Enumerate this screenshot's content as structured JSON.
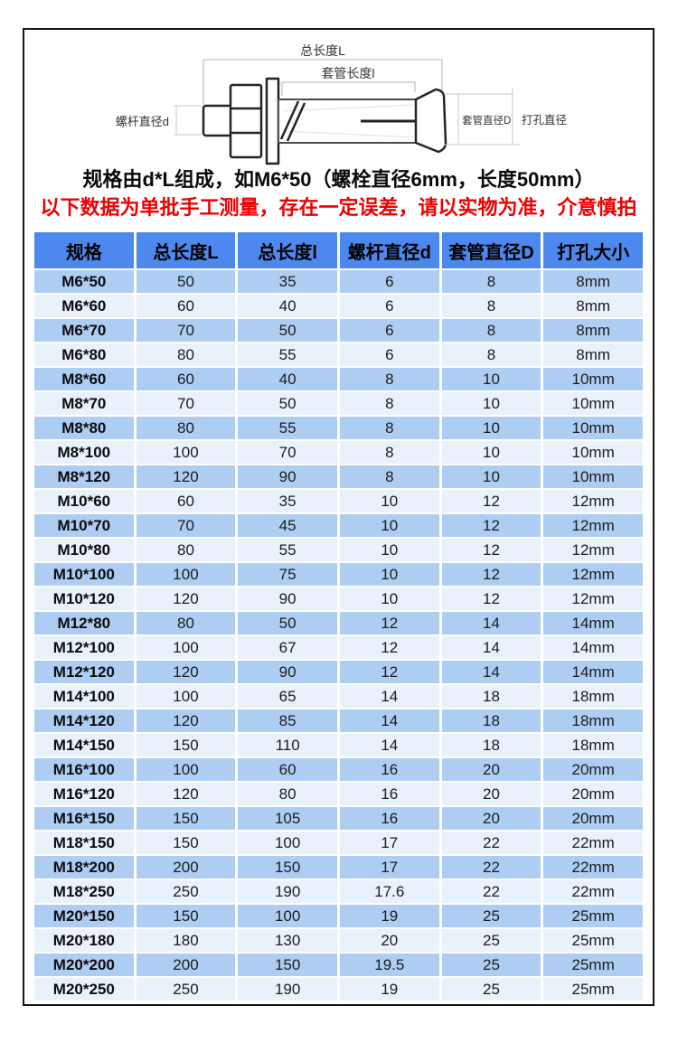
{
  "colors": {
    "header_bg": "#4d88ee",
    "row_odd_bg": "#aecdf3",
    "row_even_bg": "#e9f1fb",
    "warning_red": "#ee0000",
    "frame_border": "#161616"
  },
  "diagram": {
    "labels": {
      "total_length": "总长度L",
      "sleeve_length": "套管长度l",
      "screw_diameter": "螺杆直径d",
      "sleeve_diameter": "套管直径D",
      "drill_diameter": "打孔直径"
    }
  },
  "captions": {
    "spec_note": "规格由d*L组成，如M6*50（螺栓直径6mm，长度50mm）",
    "warning": "以下数据为单批手工测量，存在一定误差，请以实物为准，介意慎拍"
  },
  "table": {
    "headers": [
      "规格",
      "总长度L",
      "总长度l",
      "螺杆直径d",
      "套管直径D",
      "打孔大小"
    ],
    "rows": [
      [
        "M6*50",
        "50",
        "35",
        "6",
        "8",
        "8mm"
      ],
      [
        "M6*60",
        "60",
        "40",
        "6",
        "8",
        "8mm"
      ],
      [
        "M6*70",
        "70",
        "50",
        "6",
        "8",
        "8mm"
      ],
      [
        "M6*80",
        "80",
        "55",
        "6",
        "8",
        "8mm"
      ],
      [
        "M8*60",
        "60",
        "40",
        "8",
        "10",
        "10mm"
      ],
      [
        "M8*70",
        "70",
        "50",
        "8",
        "10",
        "10mm"
      ],
      [
        "M8*80",
        "80",
        "55",
        "8",
        "10",
        "10mm"
      ],
      [
        "M8*100",
        "100",
        "70",
        "8",
        "10",
        "10mm"
      ],
      [
        "M8*120",
        "120",
        "90",
        "8",
        "10",
        "10mm"
      ],
      [
        "M10*60",
        "60",
        "35",
        "10",
        "12",
        "12mm"
      ],
      [
        "M10*70",
        "70",
        "45",
        "10",
        "12",
        "12mm"
      ],
      [
        "M10*80",
        "80",
        "55",
        "10",
        "12",
        "12mm"
      ],
      [
        "M10*100",
        "100",
        "75",
        "10",
        "12",
        "12mm"
      ],
      [
        "M10*120",
        "120",
        "90",
        "10",
        "12",
        "12mm"
      ],
      [
        "M12*80",
        "80",
        "50",
        "12",
        "14",
        "14mm"
      ],
      [
        "M12*100",
        "100",
        "67",
        "12",
        "14",
        "14mm"
      ],
      [
        "M12*120",
        "120",
        "90",
        "12",
        "14",
        "14mm"
      ],
      [
        "M14*100",
        "100",
        "65",
        "14",
        "18",
        "18mm"
      ],
      [
        "M14*120",
        "120",
        "85",
        "14",
        "18",
        "18mm"
      ],
      [
        "M14*150",
        "150",
        "110",
        "14",
        "18",
        "18mm"
      ],
      [
        "M16*100",
        "100",
        "60",
        "16",
        "20",
        "20mm"
      ],
      [
        "M16*120",
        "120",
        "80",
        "16",
        "20",
        "20mm"
      ],
      [
        "M16*150",
        "150",
        "105",
        "16",
        "20",
        "20mm"
      ],
      [
        "M18*150",
        "150",
        "100",
        "17",
        "22",
        "22mm"
      ],
      [
        "M18*200",
        "200",
        "150",
        "17",
        "22",
        "22mm"
      ],
      [
        "M18*250",
        "250",
        "190",
        "17.6",
        "22",
        "22mm"
      ],
      [
        "M20*150",
        "150",
        "100",
        "19",
        "25",
        "25mm"
      ],
      [
        "M20*180",
        "180",
        "130",
        "20",
        "25",
        "25mm"
      ],
      [
        "M20*200",
        "200",
        "150",
        "19.5",
        "25",
        "25mm"
      ],
      [
        "M20*250",
        "250",
        "190",
        "19",
        "25",
        "25mm"
      ]
    ]
  }
}
